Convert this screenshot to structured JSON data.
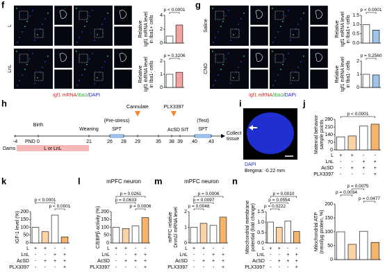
{
  "panel_letters": [
    "f",
    "g",
    "h",
    "i",
    "j",
    "k",
    "l",
    "m",
    "n"
  ],
  "f": {
    "rows": [
      "L",
      "LnL"
    ],
    "legend": [
      "Igf1 mRNA",
      "/Iba1",
      "/DAPI"
    ]
  },
  "g": {
    "rows": [
      "Saline",
      "CNO"
    ],
    "legend": [
      "Igf1 mRNA",
      "/Iba1",
      "/DAPI"
    ]
  },
  "h": {
    "days": [
      -4,
      0,
      21,
      26,
      28,
      29,
      35,
      38,
      39,
      40,
      43
    ],
    "birth": "Birth",
    "weaning": "Weaning",
    "cannulate": "Cannulate",
    "pre_stress": "(Pre-stress)",
    "spt1": "SPT",
    "plx": "PLX3397",
    "acsd": "AcSD",
    "sit": "SIT",
    "test": "(Test)",
    "spt2": "SPT",
    "collect": [
      "Collect",
      "tissue"
    ],
    "dams": "Dams",
    "pnd": "PND",
    "rearing": "L or LnL"
  },
  "i": {
    "stain": "DAPI",
    "bregma": "Bregma: -0.22 mm"
  },
  "chart_data": [
    {
      "type": "bar",
      "ylabel": [
        "Relative",
        "Igf1 mRNA level",
        "in Iba1+ cells"
      ],
      "values": [
        1,
        2.6
      ],
      "colors": [
        "#ffffff",
        "#f4a3a3"
      ],
      "ylim": [
        0,
        4
      ],
      "yticks": [
        0,
        2,
        4
      ],
      "annotations": [
        "p < 0.0001"
      ]
    },
    {
      "type": "bar",
      "ylabel": [
        "Relative",
        "Igf1 mRNA level",
        "in Iba1- cells"
      ],
      "values": [
        1,
        1.15
      ],
      "colors": [
        "#ffffff",
        "#f4a3a3"
      ],
      "ylim": [
        0,
        2
      ],
      "yticks": [
        0,
        1,
        2
      ],
      "annotations": [
        "p = 0.3206"
      ]
    },
    {
      "type": "bar",
      "ylabel": [
        "Relative",
        "Igf1 mRNA level",
        "in Iba1+ cells"
      ],
      "values": [
        1,
        0.7
      ],
      "colors": [
        "#ffffff",
        "#9dc3ea"
      ],
      "ylim": [
        0,
        1.5
      ],
      "yticks": [
        {
          "value": 0,
          "label": "0.0"
        },
        0.5,
        {
          "value": 1,
          "label": "1.0"
        },
        1.5
      ],
      "annotations": [
        "p < 0.0001"
      ]
    },
    {
      "type": "bar",
      "ylabel": [
        "Relative",
        "Igf1 mRNA level",
        "in Iba1- cells"
      ],
      "values": [
        1,
        0.95
      ],
      "colors": [
        "#ffffff",
        "#9dc3ea"
      ],
      "ylim": [
        0,
        2
      ],
      "yticks": [
        0,
        1,
        2
      ],
      "annotations": [
        "p = 0.2560"
      ]
    },
    {
      "type": "bar",
      "ylabel": [
        "Maternal behavior",
        "sample points"
      ],
      "values": [
        120,
        128,
        220,
        236
      ],
      "colors": [
        "#ffffff",
        "#fbd3a6",
        "#ffffff",
        "#f5b46c"
      ],
      "ylim": [
        0,
        280
      ],
      "yticks": [
        0,
        70,
        140,
        210,
        280
      ],
      "annotations": [
        "p < 0.0001"
      ],
      "conditions": [
        {
          "label": "L",
          "signs": [
            "+",
            "+",
            "-",
            "-"
          ]
        },
        {
          "label": "LnL",
          "signs": [
            "-",
            "-",
            "+",
            "+"
          ]
        },
        {
          "label": "AcSD",
          "signs": [
            "-",
            "+",
            "+",
            "+"
          ]
        },
        {
          "label": "PLX3397",
          "signs": [
            "-",
            "-",
            "-",
            "+"
          ]
        }
      ]
    },
    {
      "type": "bar",
      "ylabel": [
        "Mitochondrial ATP",
        "(nmol/μg protein, %)"
      ],
      "values": [
        100,
        55,
        102,
        62
      ],
      "colors": [
        "#ffffff",
        "#fbd3a6",
        "#ffffff",
        "#f5b46c"
      ],
      "ylim": [
        0,
        200
      ],
      "yticks": [
        0,
        50,
        100,
        150,
        200
      ],
      "annotations": [
        "p = 0.0075",
        "p = 0.0034",
        "p = 0.0477"
      ]
    },
    {
      "type": "bar",
      "ylabel": [
        "IGF-1 level (%)"
      ],
      "values": [
        100,
        72,
        178,
        38
      ],
      "colors": [
        "#ffffff",
        "#fbd3a6",
        "#ffffff",
        "#f5b46c"
      ],
      "ylim": [
        0,
        200
      ],
      "yticks": [
        0,
        50,
        100,
        150,
        200
      ],
      "annotations": [
        "p < 0.0001",
        "p < 0.0001"
      ],
      "conditions": [
        {
          "label": "L",
          "signs": [
            "+",
            "+",
            "-",
            "-"
          ]
        },
        {
          "label": "LnL",
          "signs": [
            "-",
            "-",
            "+",
            "+"
          ]
        },
        {
          "label": "AcSD",
          "signs": [
            "-",
            "+",
            "+",
            "+"
          ]
        },
        {
          "label": "PLX3397",
          "signs": [
            "-",
            "-",
            "-",
            "+"
          ]
        }
      ]
    },
    {
      "type": "bar",
      "title": "mPFC neuron",
      "ylabel": [
        "C/EBPβ activity (%)"
      ],
      "values": [
        100,
        92,
        108,
        162
      ],
      "colors": [
        "#ffffff",
        "#fbd3a6",
        "#ffffff",
        "#f5b46c"
      ],
      "ylim": [
        0,
        200
      ],
      "yticks": [
        0,
        50,
        100,
        150,
        200
      ],
      "annotations": [
        "p = 0.0261",
        "p = 0.0633",
        "p = 0.0006"
      ],
      "conditions": [
        {
          "label": "L",
          "signs": [
            "+",
            "+",
            "-",
            "-"
          ]
        },
        {
          "label": "LnL",
          "signs": [
            "-",
            "-",
            "+",
            "+"
          ]
        },
        {
          "label": "AcSD",
          "signs": [
            "-",
            "+",
            "+",
            "+"
          ]
        },
        {
          "label": "PLX3397",
          "signs": [
            "-",
            "-",
            "-",
            "+"
          ]
        }
      ]
    },
    {
      "type": "bar",
      "title": "mPFC neuron",
      "ylabel": [
        "mPFC relative",
        "Dnm1l mRNA level"
      ],
      "values": [
        1,
        1.25,
        1.12,
        1.65
      ],
      "colors": [
        "#ffffff",
        "#fbd3a6",
        "#ffffff",
        "#f5b46c"
      ],
      "ylim": [
        0,
        2
      ],
      "yticks": [
        0,
        1,
        2
      ],
      "annotations": [
        "p = 0.0006",
        "p = 0.0097",
        "p = 0.0048"
      ],
      "conditions": [
        {
          "label": "L",
          "signs": [
            "+",
            "+",
            "-",
            "-"
          ]
        },
        {
          "label": "LnL",
          "signs": [
            "-",
            "-",
            "+",
            "+"
          ]
        },
        {
          "label": "AcSD",
          "signs": [
            "-",
            "+",
            "+",
            "+"
          ]
        },
        {
          "label": "PLX3397",
          "signs": [
            "-",
            "-",
            "-",
            "+"
          ]
        }
      ]
    },
    {
      "type": "bar",
      "ylabel": [
        "Mitochondrial membrane",
        "potential (fold change)"
      ],
      "values": [
        1,
        0.75,
        1.05,
        0.55
      ],
      "colors": [
        "#ffffff",
        "#fbd3a6",
        "#ffffff",
        "#f5b46c"
      ],
      "ylim": [
        0,
        1.5
      ],
      "yticks": [
        {
          "value": 0,
          "label": "0.0"
        },
        0.5,
        {
          "value": 1,
          "label": "1.0"
        },
        1.5
      ],
      "annotations": [
        "p = 0.0010",
        "p = 0.0554",
        "p = 0.0222"
      ],
      "conditions": [
        {
          "label": "L",
          "signs": [
            "+",
            "+",
            "-",
            "-"
          ]
        },
        {
          "label": "LnL",
          "signs": [
            "-",
            "-",
            "+",
            "+"
          ]
        },
        {
          "label": "AcSD",
          "signs": [
            "-",
            "+",
            "+",
            "+"
          ]
        },
        {
          "label": "PLX3397",
          "signs": [
            "-",
            "-",
            "-",
            "+"
          ]
        }
      ]
    }
  ]
}
